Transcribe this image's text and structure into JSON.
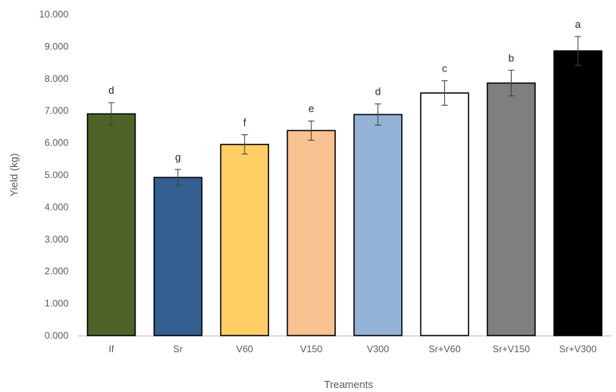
{
  "chart_data": {
    "type": "bar",
    "title": "",
    "xlabel": "Treaments",
    "ylabel": "Yield (kg)",
    "ylim": [
      0,
      10
    ],
    "yticks": [
      "0.000",
      "1.000",
      "2.000",
      "3.000",
      "4.000",
      "5.000",
      "6.000",
      "7.000",
      "8.000",
      "9.000",
      "10.000"
    ],
    "categories": [
      "If",
      "Sr",
      "V60",
      "V150",
      "V300",
      "Sr+V60",
      "Sr+V150",
      "Sr+V300"
    ],
    "values": [
      6.9,
      4.92,
      5.95,
      6.38,
      6.88,
      7.55,
      7.86,
      8.86
    ],
    "errors": [
      0.35,
      0.25,
      0.3,
      0.3,
      0.33,
      0.38,
      0.4,
      0.45
    ],
    "significance_letters": [
      "d",
      "g",
      "f",
      "e",
      "d",
      "c",
      "b",
      "a"
    ],
    "colors": [
      "#4f6228",
      "#335f91",
      "#ffcf66",
      "#f8c291",
      "#95b3d7",
      "#ffffff",
      "#7f7f7f",
      "#000000"
    ],
    "bar_border_color": "#000000",
    "axis_color": "#bfbfbf",
    "grid": false
  }
}
